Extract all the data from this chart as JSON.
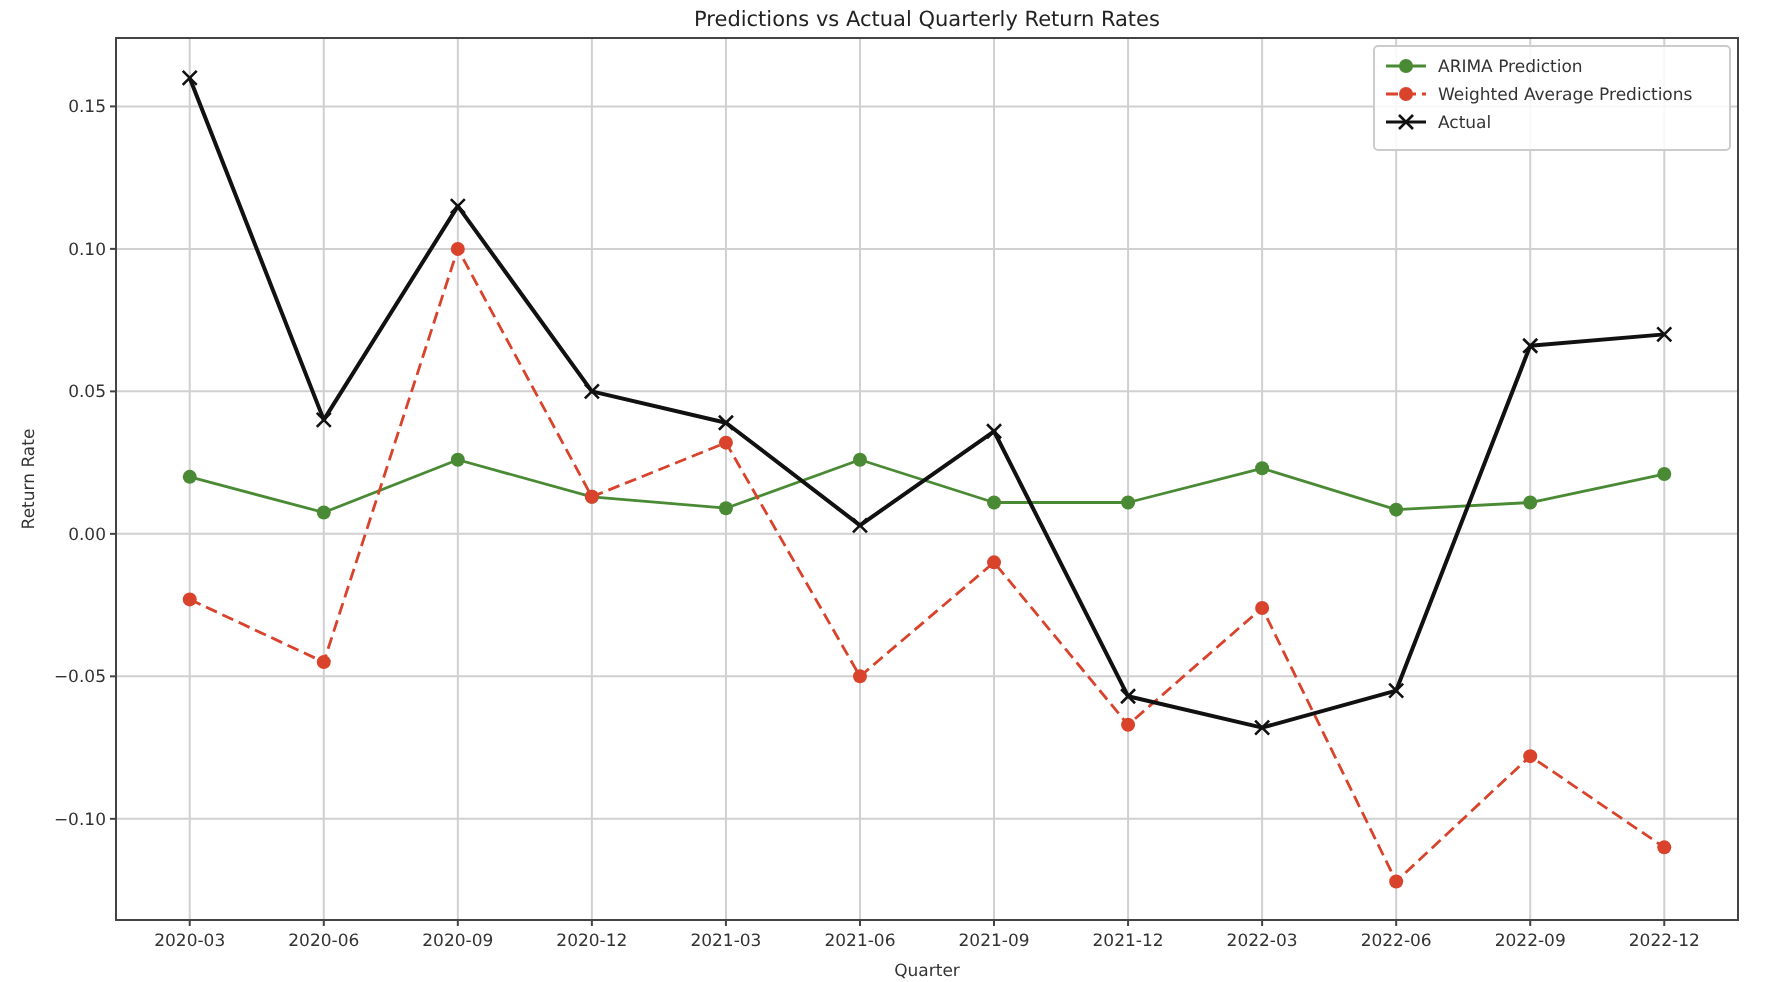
{
  "chart_data": {
    "type": "line",
    "title": "Predictions vs Actual Quarterly Return Rates",
    "xlabel": "Quarter",
    "ylabel": "Return Rate",
    "categories": [
      "2020-03",
      "2020-06",
      "2020-09",
      "2020-12",
      "2021-03",
      "2021-06",
      "2021-09",
      "2021-12",
      "2022-03",
      "2022-06",
      "2022-09",
      "2022-12"
    ],
    "series": [
      {
        "name": "ARIMA Prediction",
        "color": "#4a8a35",
        "marker": "circle",
        "line_style": "solid",
        "values": [
          0.02,
          0.0075,
          0.026,
          0.013,
          0.009,
          0.026,
          0.011,
          0.011,
          0.023,
          0.0085,
          0.011,
          0.021
        ]
      },
      {
        "name": "Weighted Average Predictions",
        "color": "#d9432b",
        "marker": "circle",
        "line_style": "dashed",
        "values": [
          -0.023,
          -0.045,
          0.1,
          0.013,
          0.032,
          -0.05,
          -0.01,
          -0.067,
          -0.026,
          -0.122,
          -0.078,
          -0.11
        ]
      },
      {
        "name": "Actual",
        "color": "#111111",
        "marker": "cross",
        "line_style": "solid",
        "values": [
          0.16,
          0.04,
          0.115,
          0.05,
          0.039,
          0.003,
          0.036,
          -0.057,
          -0.068,
          -0.055,
          0.066,
          0.07
        ]
      }
    ],
    "ylim": [
      -0.1355,
      0.174
    ],
    "yticks": [
      {
        "value": -0.1,
        "label": "−0.10"
      },
      {
        "value": -0.05,
        "label": "−0.05"
      },
      {
        "value": 0,
        "label": "0.00"
      },
      {
        "value": 0.05,
        "label": "0.05"
      },
      {
        "value": 0.1,
        "label": "0.10"
      },
      {
        "value": 0.15,
        "label": "0.15"
      }
    ],
    "grid": true,
    "legend": "top right"
  }
}
